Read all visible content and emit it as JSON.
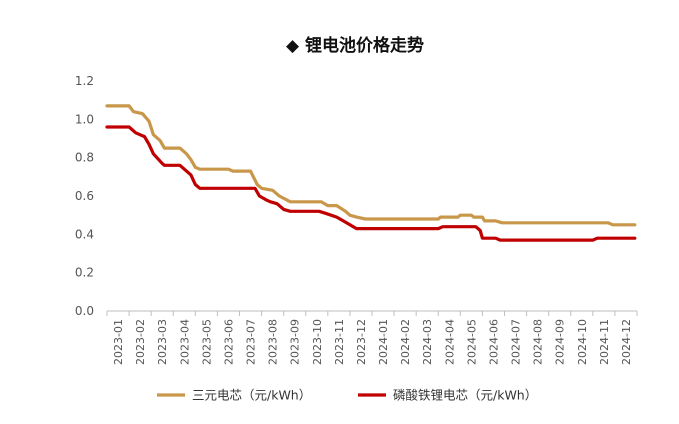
{
  "chart_data": {
    "type": "line",
    "title": "◆ 锂电池价格走势",
    "xlabel": "",
    "ylabel": "",
    "ylim": [
      0.0,
      1.2
    ],
    "yticks": [
      "0.0",
      "0.2",
      "0.4",
      "0.6",
      "0.8",
      "1.0",
      "1.2"
    ],
    "grid": false,
    "legend_position": "bottom",
    "x_ticks": [
      "2023-01",
      "2023-02",
      "2023-03",
      "2023-04",
      "2023-05",
      "2023-06",
      "2023-07",
      "2023-08",
      "2023-09",
      "2023-10",
      "2023-11",
      "2023-12",
      "2024-01",
      "2024-02",
      "2024-03",
      "2024-04",
      "2024-05",
      "2024-06",
      "2024-07",
      "2024-08",
      "2024-09",
      "2024-10",
      "2024-11",
      "2024-12"
    ],
    "x_range": [
      "2023-01",
      "2024-12"
    ],
    "series": [
      {
        "name": "三元电芯（元/kWh）",
        "color": "#c9974a",
        "points": [
          [
            "2023-01",
            1.07
          ],
          [
            "2023-02",
            1.07
          ],
          [
            "2023-02.2",
            1.04
          ],
          [
            "2023-02.6",
            1.03
          ],
          [
            "2023-02.9",
            0.99
          ],
          [
            "2023-03.1",
            0.92
          ],
          [
            "2023-03.4",
            0.89
          ],
          [
            "2023-03.6",
            0.85
          ],
          [
            "2023-04",
            0.85
          ],
          [
            "2023-04.3",
            0.85
          ],
          [
            "2023-04.6",
            0.82
          ],
          [
            "2023-04.8",
            0.79
          ],
          [
            "2023-05",
            0.75
          ],
          [
            "2023-05.2",
            0.74
          ],
          [
            "2023-06",
            0.74
          ],
          [
            "2023-06.5",
            0.74
          ],
          [
            "2023-06.7",
            0.73
          ],
          [
            "2023-07.5",
            0.73
          ],
          [
            "2023-07.8",
            0.66
          ],
          [
            "2023-08",
            0.64
          ],
          [
            "2023-08.5",
            0.63
          ],
          [
            "2023-08.8",
            0.6
          ],
          [
            "2023-09.3",
            0.57
          ],
          [
            "2023-10",
            0.57
          ],
          [
            "2023-10.7",
            0.57
          ],
          [
            "2023-11",
            0.55
          ],
          [
            "2023-11.4",
            0.55
          ],
          [
            "2023-11.8",
            0.52
          ],
          [
            "2023-12",
            0.5
          ],
          [
            "2023-12.3",
            0.49
          ],
          [
            "2023-12.7",
            0.48
          ],
          [
            "2024-01",
            0.48
          ],
          [
            "2024-02",
            0.48
          ],
          [
            "2024-03",
            0.48
          ],
          [
            "2024-04",
            0.48
          ],
          [
            "2024-04.1",
            0.49
          ],
          [
            "2024-04.9",
            0.49
          ],
          [
            "2024-05",
            0.5
          ],
          [
            "2024-05.5",
            0.5
          ],
          [
            "2024-05.6",
            0.49
          ],
          [
            "2024-06",
            0.49
          ],
          [
            "2024-06.1",
            0.47
          ],
          [
            "2024-06.6",
            0.47
          ],
          [
            "2024-06.9",
            0.46
          ],
          [
            "2024-07",
            0.46
          ],
          [
            "2024-08",
            0.46
          ],
          [
            "2024-09",
            0.46
          ],
          [
            "2024-10",
            0.46
          ],
          [
            "2024-11",
            0.46
          ],
          [
            "2024-11.7",
            0.46
          ],
          [
            "2024-11.9",
            0.45
          ],
          [
            "2024-12",
            0.45
          ],
          [
            "2024-12.9",
            0.45
          ]
        ]
      },
      {
        "name": "磷酸铁锂电芯（元/kWh）",
        "color": "#c00000",
        "points": [
          [
            "2023-01",
            0.96
          ],
          [
            "2023-02",
            0.96
          ],
          [
            "2023-02.3",
            0.93
          ],
          [
            "2023-02.7",
            0.91
          ],
          [
            "2023-02.9",
            0.87
          ],
          [
            "2023-03.1",
            0.82
          ],
          [
            "2023-03.5",
            0.77
          ],
          [
            "2023-03.6",
            0.76
          ],
          [
            "2023-04",
            0.76
          ],
          [
            "2023-04.3",
            0.76
          ],
          [
            "2023-04.6",
            0.73
          ],
          [
            "2023-04.8",
            0.71
          ],
          [
            "2023-05",
            0.66
          ],
          [
            "2023-05.2",
            0.64
          ],
          [
            "2023-06",
            0.64
          ],
          [
            "2023-07",
            0.64
          ],
          [
            "2023-07.7",
            0.64
          ],
          [
            "2023-07.9",
            0.6
          ],
          [
            "2023-08.2",
            0.58
          ],
          [
            "2023-08.4",
            0.57
          ],
          [
            "2023-08.7",
            0.56
          ],
          [
            "2023-09",
            0.53
          ],
          [
            "2023-09.3",
            0.52
          ],
          [
            "2023-10",
            0.52
          ],
          [
            "2023-10.6",
            0.52
          ],
          [
            "2023-10.9",
            0.51
          ],
          [
            "2023-11.4",
            0.49
          ],
          [
            "2023-11.7",
            0.47
          ],
          [
            "2023-12",
            0.45
          ],
          [
            "2023-12.3",
            0.43
          ],
          [
            "2024-01",
            0.43
          ],
          [
            "2024-02",
            0.43
          ],
          [
            "2024-03",
            0.43
          ],
          [
            "2024-04",
            0.43
          ],
          [
            "2024-04.2",
            0.44
          ],
          [
            "2024-05",
            0.44
          ],
          [
            "2024-05.7",
            0.44
          ],
          [
            "2024-05.9",
            0.42
          ],
          [
            "2024-06",
            0.38
          ],
          [
            "2024-06.6",
            0.38
          ],
          [
            "2024-06.8",
            0.37
          ],
          [
            "2024-07",
            0.37
          ],
          [
            "2024-08",
            0.37
          ],
          [
            "2024-09",
            0.37
          ],
          [
            "2024-10",
            0.37
          ],
          [
            "2024-11",
            0.37
          ],
          [
            "2024-11.2",
            0.38
          ],
          [
            "2024-12",
            0.38
          ],
          [
            "2024-12.9",
            0.38
          ]
        ]
      }
    ]
  }
}
